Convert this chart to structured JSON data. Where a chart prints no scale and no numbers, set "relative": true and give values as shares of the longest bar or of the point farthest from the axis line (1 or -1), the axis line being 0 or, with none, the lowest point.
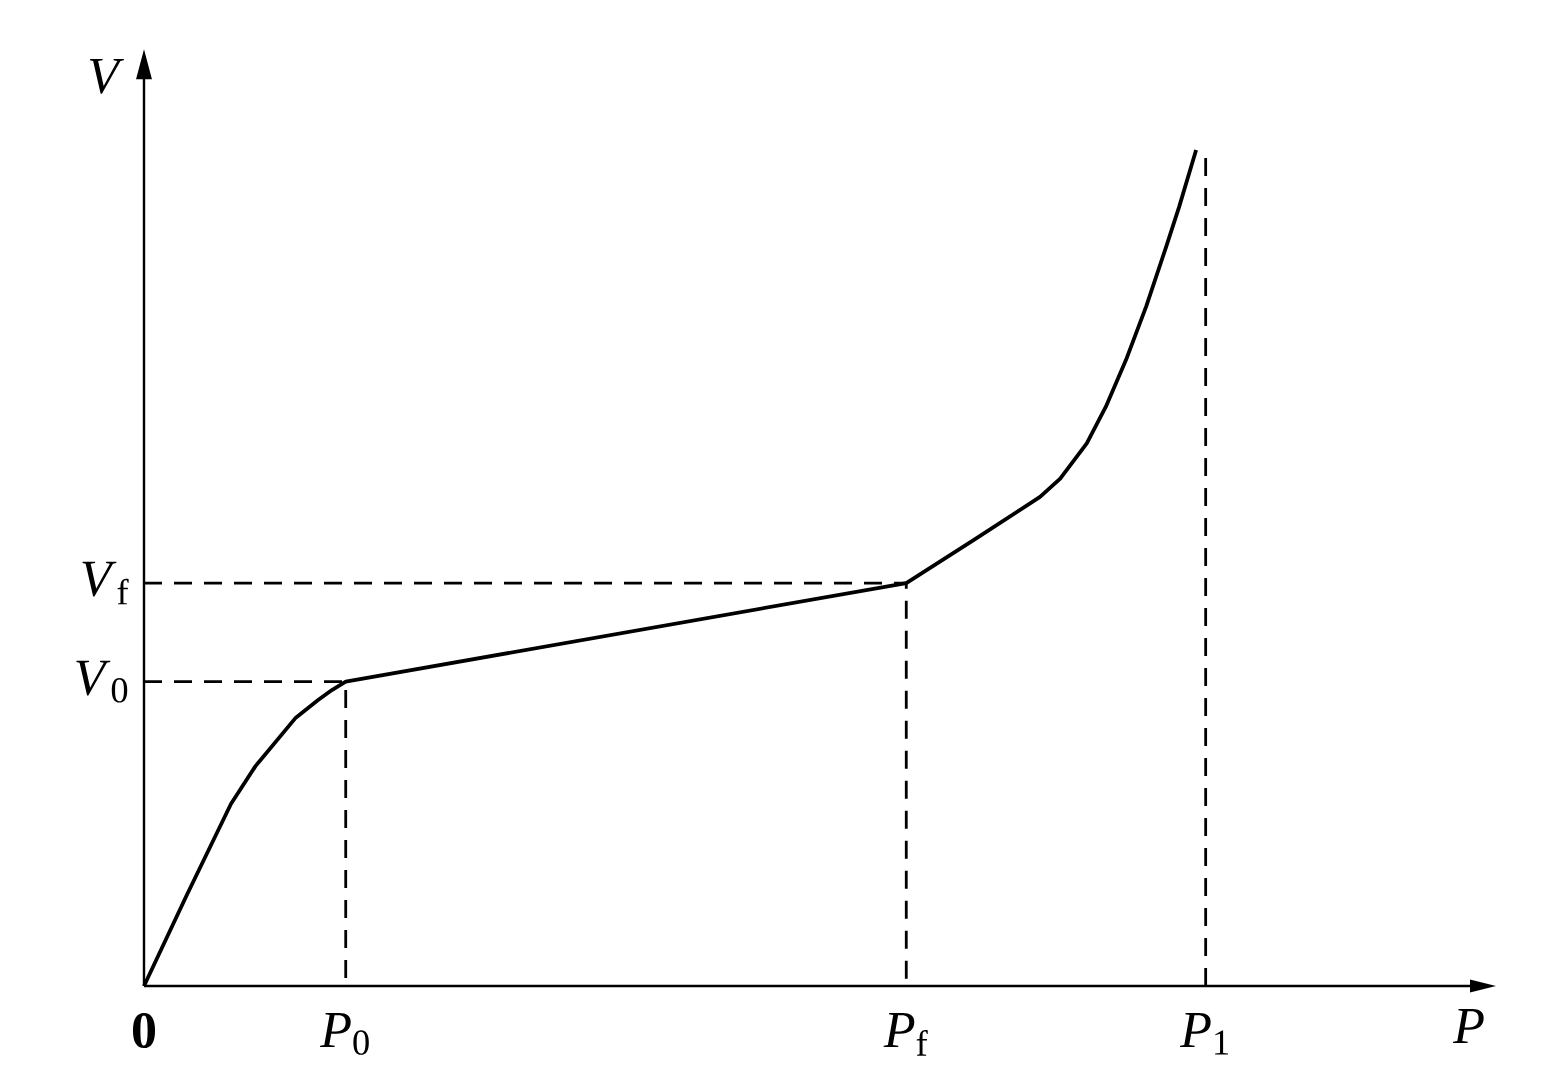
{
  "chart_data": {
    "type": "line",
    "relative": true,
    "xlabel": "P",
    "ylabel": "V",
    "marker": "none",
    "xlim": [
      0,
      1.249
    ],
    "xticks": [
      {
        "value": 0,
        "label": "0"
      },
      {
        "value": 0.19,
        "label": "*P*$_{0}$"
      },
      {
        "value": 0.718,
        "label": "*P*$_{f}$"
      },
      {
        "value": 1,
        "label": "*P*$_{1}$"
      }
    ],
    "annotations": [
      {
        "text": "*V*$_{0}$",
        "x": 0,
        "y": 0.364
      },
      {
        "text": "*V*$_{f}$",
        "x": 0,
        "y": 0.482
      }
    ],
    "ref_lines": [
      {
        "axis": "x",
        "value": 1,
        "color": "#000000",
        "line_style": "dashed"
      }
    ],
    "series": [
      {
        "color": "#000000",
        "line_style": "solid",
        "x": [
          0,
          0.04,
          0.082,
          0.105,
          0.124,
          0.143,
          0.164,
          0.177,
          0.19,
          0.718,
          0.781,
          0.844,
          0.863,
          0.888,
          0.906,
          0.925,
          0.944,
          0.963,
          0.975,
          0.991
        ],
        "values": [
          0,
          0.108,
          0.218,
          0.263,
          0.292,
          0.321,
          0.342,
          0.354,
          0.364,
          0.482,
          0.533,
          0.585,
          0.607,
          0.649,
          0.693,
          0.749,
          0.813,
          0.885,
          0.932,
          1
        ]
      },
      {
        "color": "#000000",
        "line_style": "dashed",
        "x": [
          0,
          0.19,
          0.19
        ],
        "values": [
          0.364,
          0.364,
          0
        ]
      },
      {
        "color": "#000000",
        "line_style": "dashed",
        "x": [
          0,
          0.718,
          0.718
        ],
        "values": [
          0.482,
          0.482,
          0
        ]
      }
    ]
  }
}
